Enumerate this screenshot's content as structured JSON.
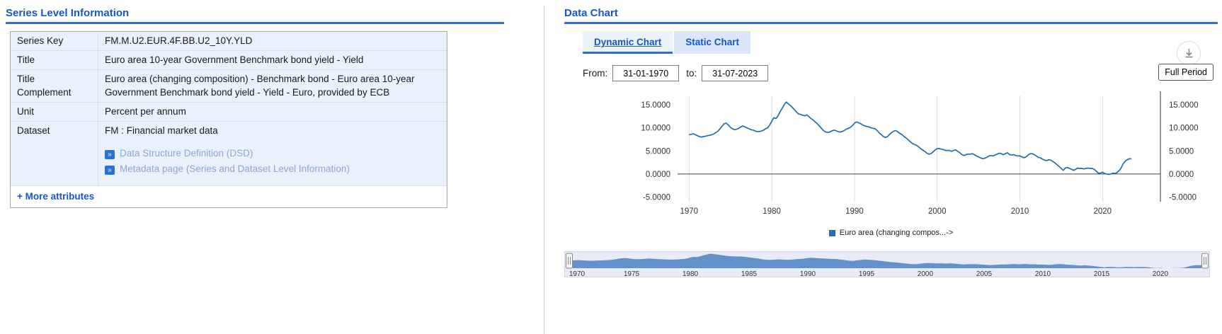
{
  "series_panel": {
    "title": "Series Level Information",
    "rows": [
      {
        "label": "Series Key",
        "value": "FM.M.U2.EUR.4F.BB.U2_10Y.YLD"
      },
      {
        "label": "Title",
        "value": "Euro area 10-year Government Benchmark bond yield - Yield"
      },
      {
        "label": "Title Complement",
        "value": "Euro area (changing composition) - Benchmark bond - Euro area 10-year Government Benchmark bond yield - Yield - Euro, provided by ECB"
      },
      {
        "label": "Unit",
        "value": "Percent per annum"
      },
      {
        "label": "Dataset",
        "value": "FM : Financial market data"
      }
    ],
    "dataset_links": [
      "Data Structure Definition (DSD)",
      "Metadata page (Series and Dataset Level Information)"
    ],
    "link_arrow_glyph": "»",
    "more_attributes_label": "+ More attributes"
  },
  "chart_panel": {
    "title": "Data Chart",
    "tabs": [
      {
        "label": "Dynamic Chart",
        "active": true
      },
      {
        "label": "Static Chart",
        "active": false
      }
    ],
    "from_label": "From:",
    "to_label": "to:",
    "from_value": "31-01-1970",
    "to_value": "31-07-2023",
    "full_period_label": "Full Period",
    "legend_label": "Euro area (changing compos...->"
  },
  "chart_data": {
    "type": "line",
    "title": "",
    "xlabel": "",
    "ylabel": "",
    "xlim": [
      1968.6,
      2027.0
    ],
    "ylim": [
      -6,
      17
    ],
    "yticks": [
      15,
      10,
      5,
      0,
      -5
    ],
    "y_tick_decimals": 4,
    "xticks_main": [
      1970,
      1980,
      1990,
      2000,
      2010,
      2020
    ],
    "xticks_navigator": [
      1970,
      1975,
      1980,
      1985,
      1990,
      1995,
      2000,
      2005,
      2010,
      2015,
      2020
    ],
    "navigator_xlim": [
      1969.7,
      2023.8
    ],
    "line_color": "#1f6fb2",
    "navigator_fill": "#5b8cc8",
    "series": [
      {
        "name": "Euro area (changing compos...->",
        "x_start": 1970.0,
        "x_step": 0.25,
        "values": [
          8.5,
          8.6,
          8.7,
          8.5,
          8.3,
          8.1,
          8.0,
          8.1,
          8.2,
          8.3,
          8.4,
          8.5,
          8.7,
          9.0,
          9.3,
          9.8,
          10.4,
          10.9,
          11.0,
          10.6,
          10.1,
          9.8,
          9.6,
          9.7,
          9.9,
          10.2,
          10.4,
          10.2,
          10.0,
          9.8,
          9.6,
          9.5,
          9.3,
          9.2,
          9.2,
          9.3,
          9.5,
          9.8,
          10.0,
          10.6,
          11.4,
          12.2,
          12.0,
          12.6,
          13.5,
          14.2,
          15.0,
          15.6,
          15.2,
          14.8,
          14.4,
          13.9,
          13.4,
          13.0,
          12.9,
          12.7,
          12.6,
          12.8,
          12.4,
          12.0,
          11.7,
          11.3,
          10.9,
          10.4,
          9.9,
          9.4,
          9.1,
          9.0,
          9.1,
          9.3,
          9.5,
          9.4,
          9.2,
          9.1,
          9.2,
          9.4,
          9.7,
          9.9,
          10.1,
          10.5,
          11.0,
          11.3,
          11.1,
          10.9,
          10.6,
          10.4,
          10.3,
          10.2,
          10.0,
          9.9,
          9.8,
          9.4,
          8.9,
          8.5,
          8.1,
          7.9,
          8.1,
          8.6,
          9.0,
          9.3,
          9.4,
          9.1,
          8.8,
          8.5,
          8.1,
          7.8,
          7.4,
          7.0,
          6.6,
          6.4,
          6.2,
          5.9,
          5.5,
          5.2,
          4.9,
          4.5,
          4.3,
          4.4,
          4.8,
          5.2,
          5.5,
          5.5,
          5.4,
          5.3,
          5.1,
          5.1,
          5.1,
          4.9,
          5.1,
          5.2,
          4.9,
          4.6,
          4.2,
          4.0,
          4.2,
          4.3,
          4.3,
          4.4,
          4.2,
          3.9,
          3.7,
          3.5,
          3.3,
          3.4,
          3.6,
          3.9,
          4.0,
          3.9,
          4.1,
          4.3,
          4.5,
          4.4,
          4.2,
          4.4,
          4.6,
          4.2,
          4.1,
          4.2,
          4.0,
          3.9,
          3.9,
          3.7,
          3.5,
          3.7,
          4.1,
          4.4,
          4.4,
          4.2,
          3.9,
          3.6,
          3.5,
          3.2,
          3.0,
          2.9,
          3.1,
          3.0,
          2.7,
          2.4,
          2.0,
          1.6,
          1.2,
          0.8,
          1.3,
          1.4,
          1.2,
          1.0,
          0.8,
          1.0,
          1.3,
          1.2,
          1.2,
          1.1,
          1.2,
          1.3,
          1.2,
          1.2,
          1.0,
          0.6,
          0.2,
          0.2,
          0.4,
          0.1,
          0.0,
          -0.1,
          0.0,
          0.2,
          0.1,
          0.3,
          0.7,
          1.3,
          2.2,
          2.8,
          3.1,
          3.3,
          3.3
        ]
      }
    ]
  }
}
